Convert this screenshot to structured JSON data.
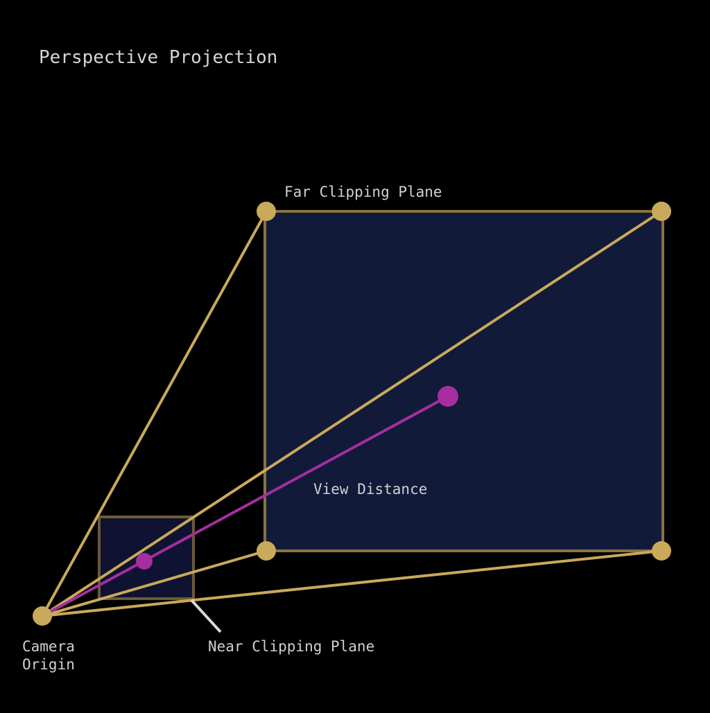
{
  "title": "Perspective Projection",
  "labels": {
    "far_plane": "Far Clipping Plane",
    "near_plane": "Near Clipping Plane",
    "view_distance": "View Distance",
    "camera_origin_line1": "Camera",
    "camera_origin_line2": "Origin"
  },
  "colors": {
    "background": "#000000",
    "frustum_edge": "#c9a95a",
    "plane_fill": "#121a3a",
    "plane_border": "#8a7240",
    "view_axis": "#a52ea0",
    "leader_line": "#d8d8d8",
    "text": "#d0d0d0"
  }
}
